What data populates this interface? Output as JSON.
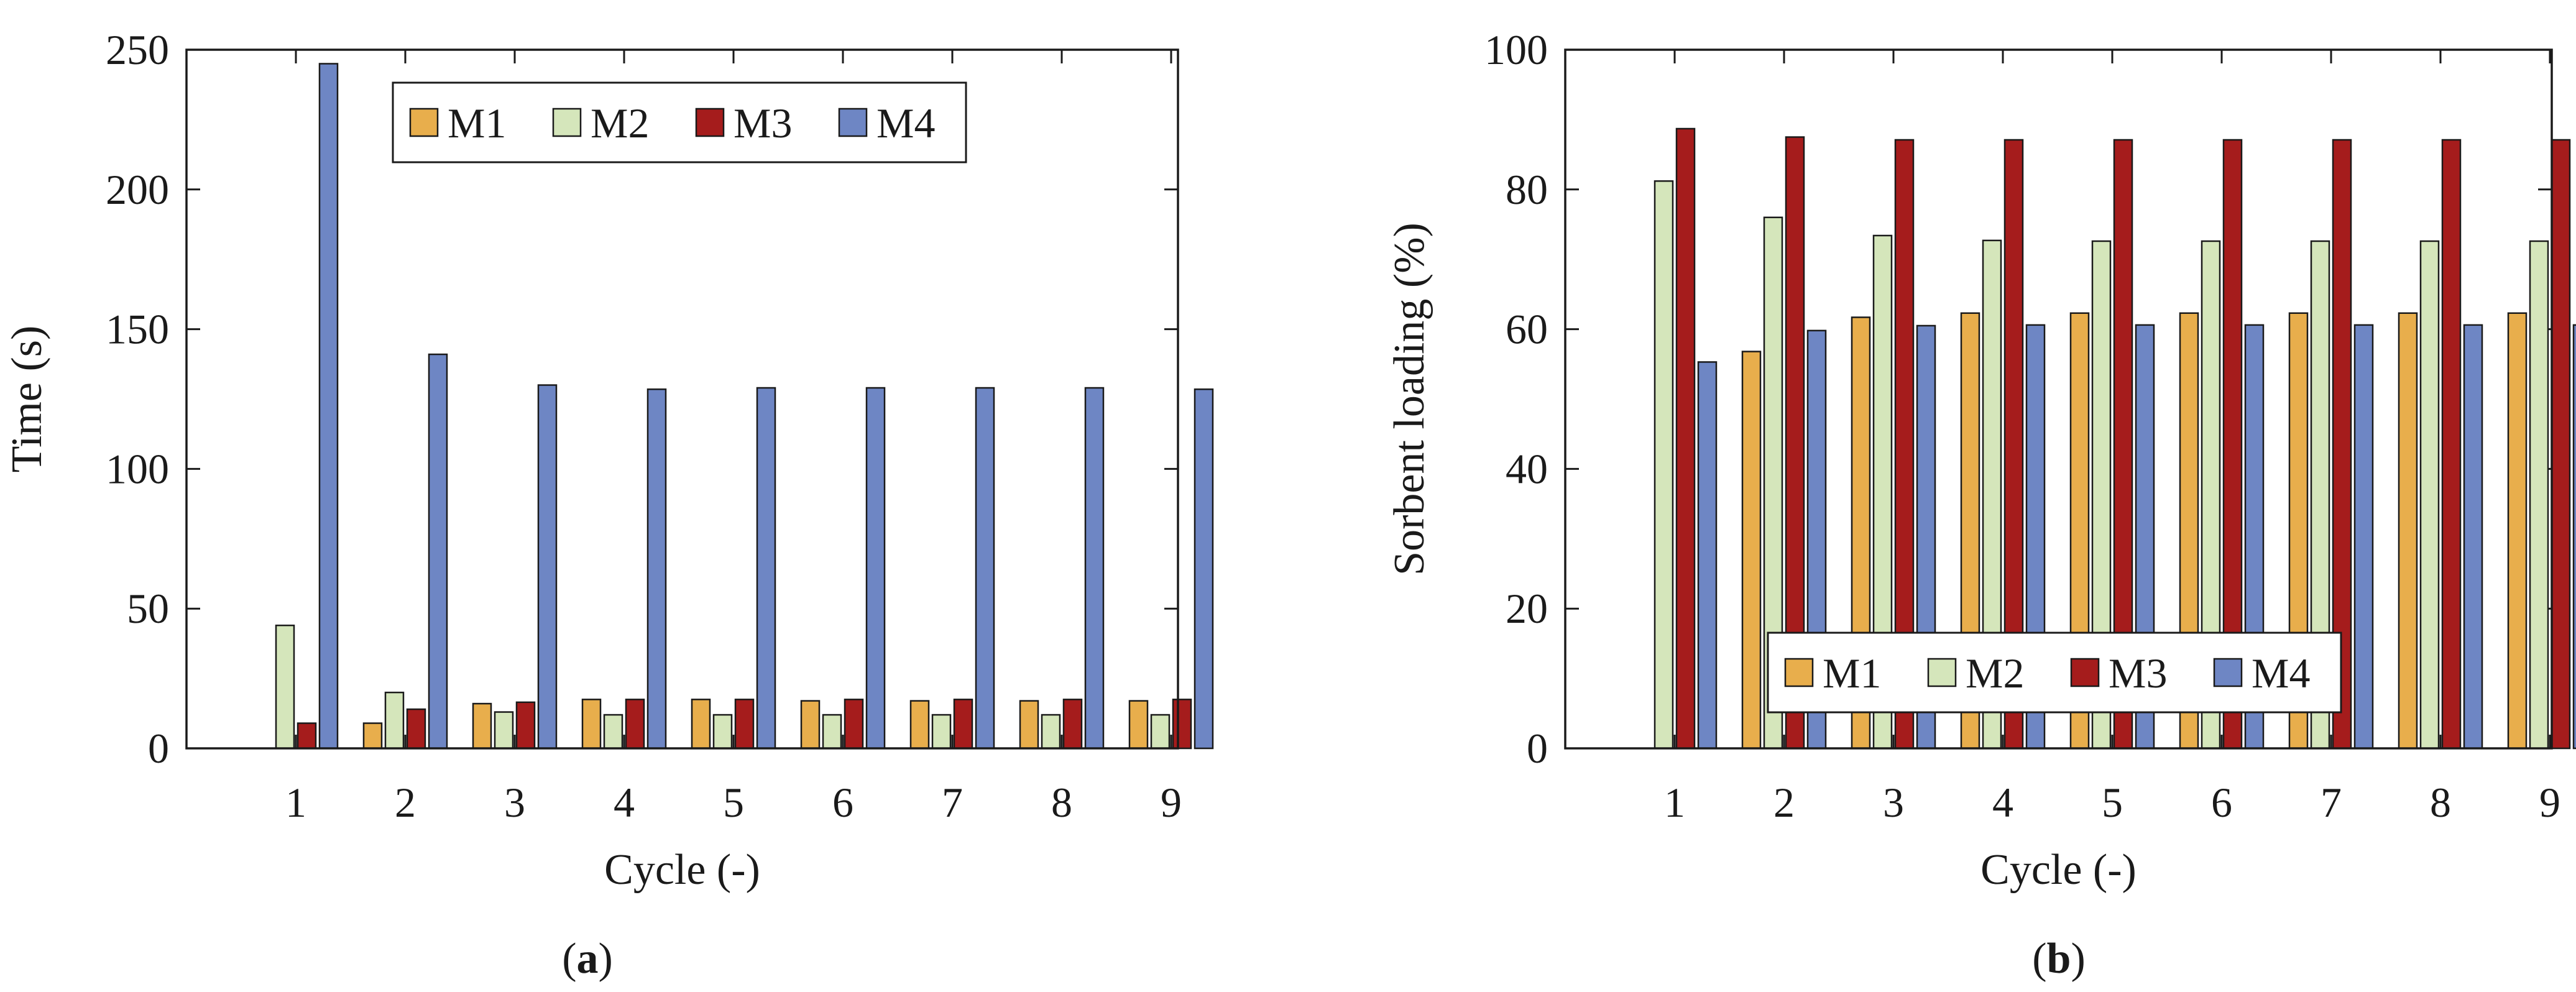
{
  "colors": {
    "M1": "#E8AE4C",
    "M2": "#D5E6BB",
    "M3": "#A51C1C",
    "M4": "#6E86C4",
    "axis": "#1a1a1a",
    "background": "#ffffff"
  },
  "chart_data": [
    {
      "type": "bar",
      "panel": "a",
      "caption_open": "(",
      "caption_letter": "a",
      "caption_close": ")",
      "title": "",
      "xlabel": "Cycle (-)",
      "ylabel": "Time (s)",
      "ylim": [
        0,
        250
      ],
      "yticks": [
        0,
        50,
        100,
        150,
        200,
        250
      ],
      "legend_position": "top-center",
      "categories": [
        "1",
        "2",
        "3",
        "4",
        "5",
        "6",
        "7",
        "8",
        "9"
      ],
      "series": [
        {
          "name": "M1",
          "values": [
            0,
            9,
            16,
            17.5,
            17.5,
            17,
            17,
            17,
            17
          ]
        },
        {
          "name": "M2",
          "values": [
            44,
            20,
            13,
            12,
            12,
            12,
            12,
            12,
            12
          ]
        },
        {
          "name": "M3",
          "values": [
            9,
            14,
            16.5,
            17.5,
            17.5,
            17.5,
            17.5,
            17.5,
            17.5
          ]
        },
        {
          "name": "M4",
          "values": [
            245,
            141,
            130,
            128.5,
            129,
            129,
            129,
            129,
            128.5
          ]
        }
      ]
    },
    {
      "type": "bar",
      "panel": "b",
      "caption_open": "(",
      "caption_letter": "b",
      "caption_close": ")",
      "title": "",
      "xlabel": "Cycle (-)",
      "ylabel": "Sorbent loading (%)",
      "ylim": [
        0,
        100
      ],
      "yticks": [
        0,
        20,
        40,
        60,
        80,
        100
      ],
      "legend_position": "bottom-center",
      "categories": [
        "1",
        "2",
        "3",
        "4",
        "5",
        "6",
        "7",
        "8",
        "9"
      ],
      "series": [
        {
          "name": "M1",
          "values": [
            0,
            56.8,
            61.7,
            62.3,
            62.3,
            62.3,
            62.3,
            62.3,
            62.3
          ]
        },
        {
          "name": "M2",
          "values": [
            81.2,
            76,
            73.4,
            72.7,
            72.6,
            72.6,
            72.6,
            72.6,
            72.6
          ]
        },
        {
          "name": "M3",
          "values": [
            88.7,
            87.5,
            87.1,
            87.1,
            87.1,
            87.1,
            87.1,
            87.1,
            87.1
          ]
        },
        {
          "name": "M4",
          "values": [
            55.3,
            59.8,
            60.5,
            60.6,
            60.6,
            60.6,
            60.6,
            60.6,
            60.6
          ]
        }
      ]
    }
  ]
}
